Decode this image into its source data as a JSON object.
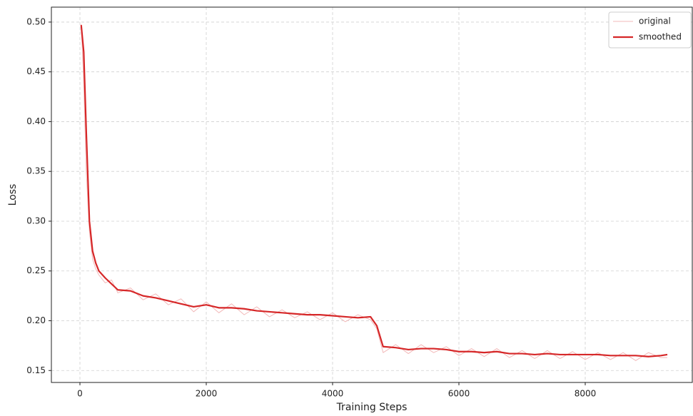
{
  "chart_data": {
    "type": "line",
    "xlabel": "Training Steps",
    "ylabel": "Loss",
    "x": [
      20,
      60,
      100,
      150,
      200,
      250,
      300,
      400,
      500,
      600,
      800,
      1000,
      1200,
      1400,
      1600,
      1800,
      2000,
      2200,
      2400,
      2600,
      2800,
      3000,
      3200,
      3400,
      3600,
      3800,
      4000,
      4200,
      4400,
      4600,
      4700,
      4800,
      5000,
      5200,
      5400,
      5600,
      5800,
      6000,
      6200,
      6400,
      6600,
      6800,
      7000,
      7200,
      7400,
      7600,
      7800,
      8000,
      8200,
      8400,
      8600,
      8800,
      9000,
      9200,
      9300
    ],
    "series": [
      {
        "name": "original",
        "color": "#f2b8b8",
        "width": 1,
        "values": [
          0.498,
          0.44,
          0.35,
          0.29,
          0.262,
          0.252,
          0.246,
          0.238,
          0.241,
          0.228,
          0.233,
          0.221,
          0.227,
          0.216,
          0.222,
          0.209,
          0.219,
          0.208,
          0.217,
          0.206,
          0.214,
          0.204,
          0.211,
          0.203,
          0.209,
          0.201,
          0.208,
          0.199,
          0.206,
          0.201,
          0.192,
          0.168,
          0.176,
          0.167,
          0.176,
          0.168,
          0.174,
          0.165,
          0.172,
          0.164,
          0.172,
          0.163,
          0.17,
          0.162,
          0.17,
          0.162,
          0.169,
          0.161,
          0.168,
          0.161,
          0.168,
          0.16,
          0.168,
          0.163,
          0.163
        ]
      },
      {
        "name": "smoothed",
        "color": "#d62728",
        "width": 2.2,
        "values": [
          0.497,
          0.47,
          0.39,
          0.3,
          0.27,
          0.258,
          0.25,
          0.243,
          0.237,
          0.231,
          0.23,
          0.225,
          0.223,
          0.22,
          0.217,
          0.214,
          0.216,
          0.213,
          0.213,
          0.212,
          0.21,
          0.209,
          0.208,
          0.207,
          0.206,
          0.206,
          0.205,
          0.204,
          0.203,
          0.204,
          0.195,
          0.174,
          0.173,
          0.171,
          0.172,
          0.172,
          0.171,
          0.169,
          0.169,
          0.168,
          0.169,
          0.167,
          0.167,
          0.166,
          0.167,
          0.166,
          0.166,
          0.166,
          0.166,
          0.165,
          0.165,
          0.165,
          0.164,
          0.165,
          0.166
        ]
      }
    ],
    "xlim": [
      -452,
      9695
    ],
    "xticks": [
      0,
      2000,
      4000,
      6000,
      8000
    ],
    "ylim": [
      0.138,
      0.515
    ],
    "yticks": [
      0.15,
      {
        "value": 0.2,
        "label": "0.20"
      },
      0.25,
      {
        "value": 0.3,
        "label": "0.30"
      },
      0.35,
      {
        "value": 0.4,
        "label": "0.40"
      },
      0.45,
      {
        "value": 0.5,
        "label": "0.50"
      }
    ],
    "grid": true,
    "legend": "upper right"
  }
}
